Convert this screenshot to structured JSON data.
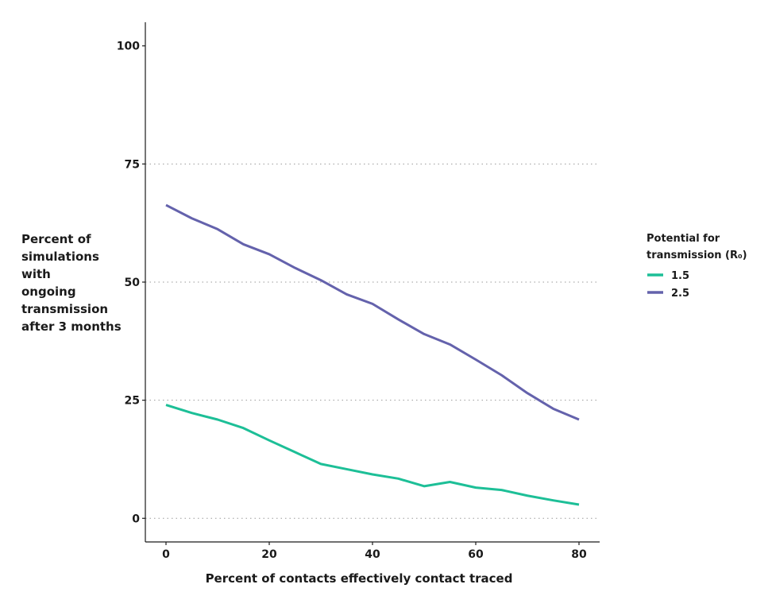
{
  "chart_data": {
    "type": "line",
    "title": "",
    "xlabel": "Percent of contacts effectively contact traced",
    "ylabel_lines": [
      "Percent of",
      "simulations",
      "with",
      "ongoing",
      "transmission",
      "after 3 months"
    ],
    "xlim": [
      -4,
      84
    ],
    "ylim": [
      -5,
      105
    ],
    "x_ticks": [
      0,
      20,
      40,
      60,
      80
    ],
    "y_ticks": [
      0,
      25,
      50,
      75,
      100
    ],
    "y_grid": [
      0,
      25,
      50,
      75
    ],
    "grid": "horizontal dotted",
    "legend_placement": "right",
    "legend_title_lines": [
      "Potential for",
      "transmission (R₀)"
    ],
    "x": [
      0,
      5,
      10,
      15,
      20,
      25,
      30,
      35,
      40,
      45,
      50,
      55,
      60,
      65,
      70,
      75,
      80
    ],
    "series": [
      {
        "name": "1.5",
        "color": "#1dbf97",
        "values": [
          24,
          22.3,
          20.9,
          19.1,
          16.5,
          14,
          11.5,
          10.4,
          9.3,
          8.4,
          6.8,
          7.7,
          6.5,
          6,
          4.8,
          3.8,
          2.9
        ]
      },
      {
        "name": "2.5",
        "color": "#6462ac",
        "values": [
          66.3,
          63.5,
          61.2,
          58,
          55.9,
          53,
          50.4,
          47.4,
          45.4,
          42.1,
          39,
          36.8,
          33.6,
          30.3,
          26.5,
          23.2,
          20.9
        ]
      }
    ]
  }
}
